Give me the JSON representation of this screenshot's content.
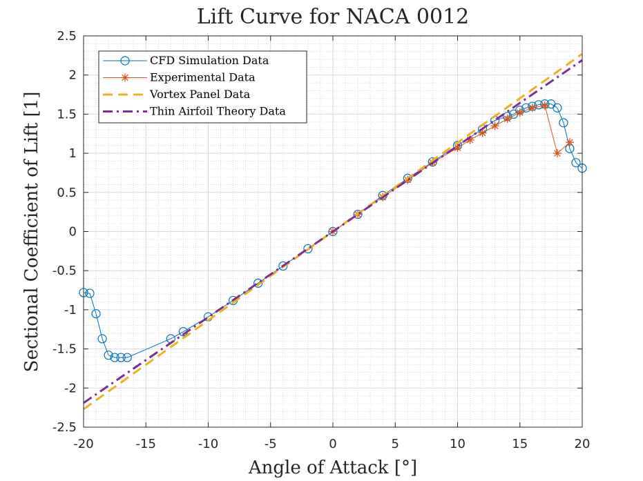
{
  "chart_data": {
    "type": "line",
    "title": "Lift Curve for NACA 0012",
    "xlabel": "Angle of Attack [°]",
    "ylabel": "Sectional Coefficient of Lift [1]",
    "xlim": [
      -20,
      20
    ],
    "ylim": [
      -2.5,
      2.5
    ],
    "xticks": [
      -20,
      -15,
      -10,
      -5,
      0,
      5,
      10,
      15,
      20
    ],
    "yticks": [
      -2.5,
      -2,
      -1.5,
      -1,
      -0.5,
      0,
      0.5,
      1,
      1.5,
      2,
      2.5
    ],
    "xtick_labels": [
      "-20",
      "-15",
      "-10",
      "-5",
      "0",
      "5",
      "10",
      "15",
      "20"
    ],
    "ytick_labels": [
      "-2.5",
      "-2",
      "-1.5",
      "-1",
      "-0.5",
      "0",
      "0.5",
      "1",
      "1.5",
      "2",
      "2.5"
    ],
    "grid": true,
    "minor_grid": true,
    "legend_position": "top-left",
    "series": [
      {
        "name": "CFD Simulation Data",
        "style": "solid-circle",
        "color": "#0072BD",
        "x": [
          -20,
          -19.5,
          -19,
          -18.5,
          -18,
          -17.5,
          -17,
          -16.5,
          -13,
          -12,
          -10,
          -8,
          -6,
          -4,
          -2,
          0,
          2,
          4,
          6,
          8,
          10,
          12,
          13,
          14,
          14.5,
          15,
          15.5,
          16,
          16.5,
          17,
          17.5,
          18,
          18.5,
          19,
          19.5,
          20
        ],
        "y": [
          -0.78,
          -0.79,
          -1.05,
          -1.37,
          -1.58,
          -1.61,
          -1.61,
          -1.61,
          -1.37,
          -1.28,
          -1.09,
          -0.88,
          -0.66,
          -0.44,
          -0.22,
          0,
          0.22,
          0.46,
          0.68,
          0.89,
          1.1,
          1.31,
          1.42,
          1.47,
          1.5,
          1.55,
          1.58,
          1.6,
          1.62,
          1.63,
          1.63,
          1.58,
          1.39,
          1.06,
          0.88,
          0.81
        ]
      },
      {
        "name": "Experimental Data",
        "style": "solid-star",
        "color": "#D95319",
        "x": [
          0,
          2,
          4,
          6,
          8,
          10,
          11,
          12,
          13,
          14,
          15,
          16,
          17,
          18,
          19
        ],
        "y": [
          0,
          0.22,
          0.44,
          0.66,
          0.88,
          1.07,
          1.17,
          1.26,
          1.35,
          1.44,
          1.52,
          1.58,
          1.61,
          1.0,
          1.14
        ]
      },
      {
        "name": "Vortex Panel Data",
        "style": "dashed",
        "color": "#EDB120",
        "x": [
          -20,
          20
        ],
        "y": [
          -2.27,
          2.27
        ]
      },
      {
        "name": "Thin Airfoil Theory Data",
        "style": "dash-dot",
        "color": "#7E2F8E",
        "x": [
          -20,
          20
        ],
        "y": [
          -2.19,
          2.19
        ]
      }
    ]
  }
}
